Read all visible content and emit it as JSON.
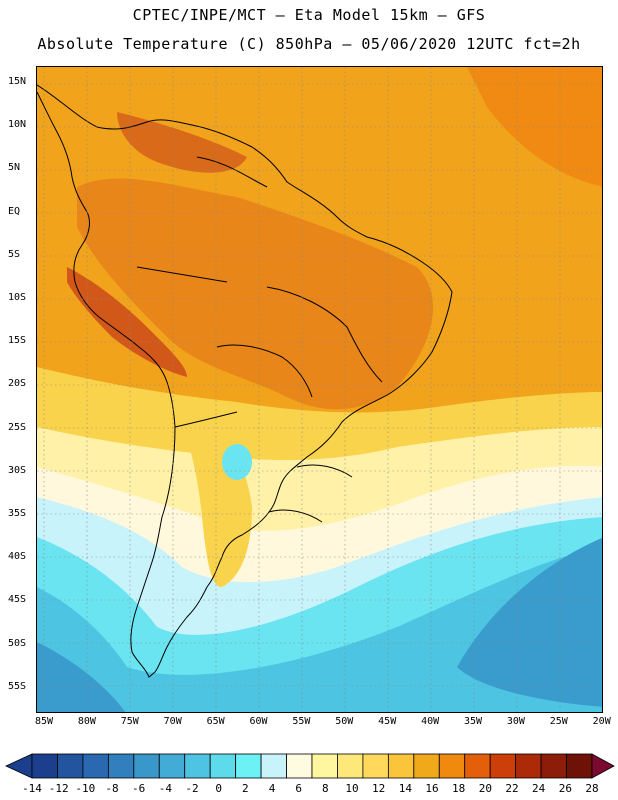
{
  "header": {
    "line1": "CPTEC/INPE/MCT –  Eta Model 15km – GFS",
    "line2": "Absolute Temperature (C) 850hPa – 05/06/2020 12UTC fct=2h"
  },
  "map": {
    "lat_labels": [
      "15N",
      "10N",
      "5N",
      "EQ",
      "5S",
      "10S",
      "15S",
      "20S",
      "25S",
      "30S",
      "35S",
      "40S",
      "45S",
      "50S",
      "55S"
    ],
    "lon_labels": [
      "85W",
      "80W",
      "75W",
      "70W",
      "65W",
      "60W",
      "55W",
      "50W",
      "45W",
      "40W",
      "35W",
      "30W",
      "25W",
      "20W"
    ]
  },
  "colorbar": {
    "labels": [
      "-14",
      "-12",
      "-10",
      "-8",
      "-6",
      "-4",
      "-2",
      "0",
      "2",
      "4",
      "6",
      "8",
      "10",
      "12",
      "14",
      "16",
      "18",
      "20",
      "22",
      "24",
      "26",
      "28"
    ],
    "colors": [
      "#1b3f8c",
      "#23549e",
      "#2a68b0",
      "#3180bd",
      "#3a97c9",
      "#43acd6",
      "#4ec4e2",
      "#5ddbea",
      "#6cf1f5",
      "#c9f3fb",
      "#fffbe0",
      "#fff7a0",
      "#ffe87a",
      "#ffd85c",
      "#fac43b",
      "#f0a91b",
      "#f08a0e",
      "#e45f0a",
      "#cd3f08",
      "#ad2a08",
      "#8c1d08",
      "#6e1208"
    ]
  },
  "palette": {
    "ocean_warm": "#f2a31c",
    "land_hot": "#e27518",
    "land_very_hot": "#d15511",
    "yellow": "#fad34d",
    "pale_yellow": "#fff1a8",
    "cream": "#fff8dc",
    "pale_cyan": "#c9f3fb",
    "cyan": "#6ae4f0",
    "sky": "#4dc5e2",
    "blue": "#3a9ccd"
  }
}
